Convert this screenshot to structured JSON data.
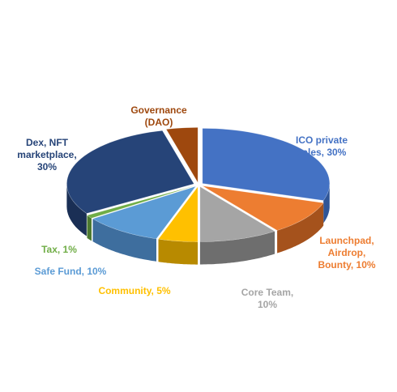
{
  "chart_data": {
    "type": "pie",
    "style": "3d-exploded",
    "title": "",
    "slices": [
      {
        "label_lines": [
          "ICO private",
          "sales, 30%"
        ],
        "value": 30,
        "color": "#4472c4",
        "side": "#2f5597"
      },
      {
        "label_lines": [
          "Launchpad,",
          "Airdrop,",
          "Bounty, 10%"
        ],
        "value": 10,
        "color": "#ed7d31",
        "side": "#a5521c"
      },
      {
        "label_lines": [
          "Core Team,",
          "10%"
        ],
        "value": 10,
        "color": "#a5a5a5",
        "side": "#6e6e6e"
      },
      {
        "label_lines": [
          "Community, 5%"
        ],
        "value": 5,
        "color": "#ffc000",
        "side": "#b88a00"
      },
      {
        "label_lines": [
          "Safe Fund, 10%"
        ],
        "value": 10,
        "color": "#5b9bd5",
        "side": "#3e6e9e"
      },
      {
        "label_lines": [
          "Tax, 1%"
        ],
        "value": 1,
        "color": "#70ad47",
        "side": "#4d7a30"
      },
      {
        "label_lines": [
          "Dex, NFT",
          "marketplace,",
          "30%"
        ],
        "value": 30,
        "color": "#264478",
        "side": "#1a2f55"
      },
      {
        "label_lines": [
          "Governance",
          "(DAO)"
        ],
        "value": 4,
        "color": "#9e480e",
        "side": "#6b3009"
      }
    ]
  }
}
